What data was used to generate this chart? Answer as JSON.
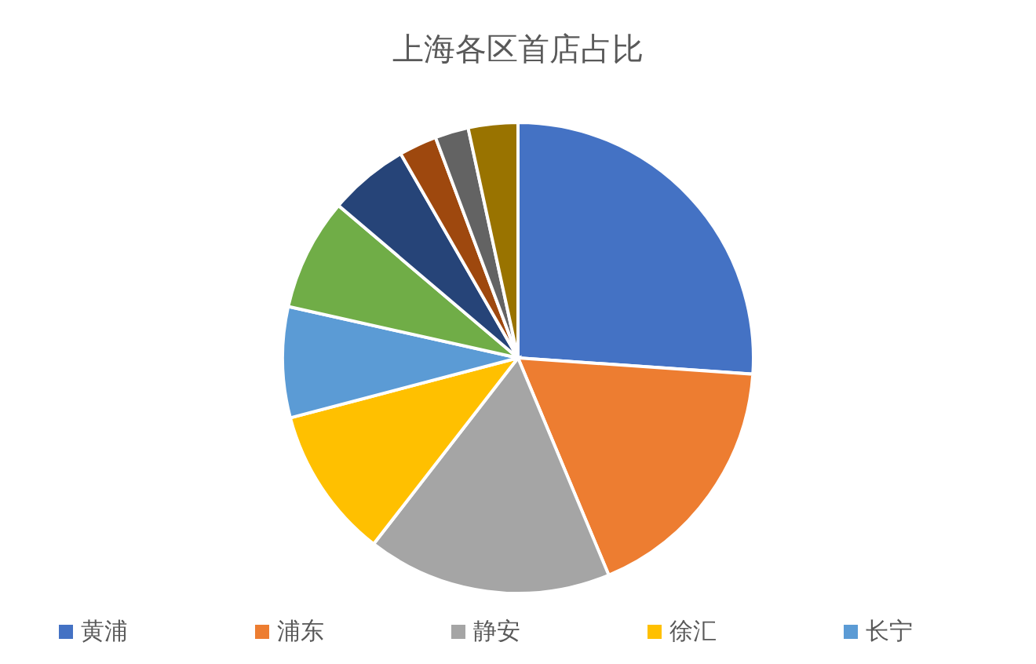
{
  "chart_data": {
    "type": "pie",
    "title": "上海各区首店占比",
    "categories": [
      "黄浦",
      "浦东",
      "静安",
      "徐汇",
      "长宁",
      null,
      null,
      null,
      null,
      null
    ],
    "values": [
      26.1,
      17.6,
      16.8,
      10.4,
      7.6,
      7.7,
      5.5,
      2.6,
      2.3,
      3.4
    ],
    "colors": [
      "#4472c4",
      "#ed7d31",
      "#a5a5a5",
      "#ffc000",
      "#5b9bd5",
      "#70ad47",
      "#264478",
      "#9e480e",
      "#636363",
      "#997300"
    ],
    "legend": "bottom"
  }
}
